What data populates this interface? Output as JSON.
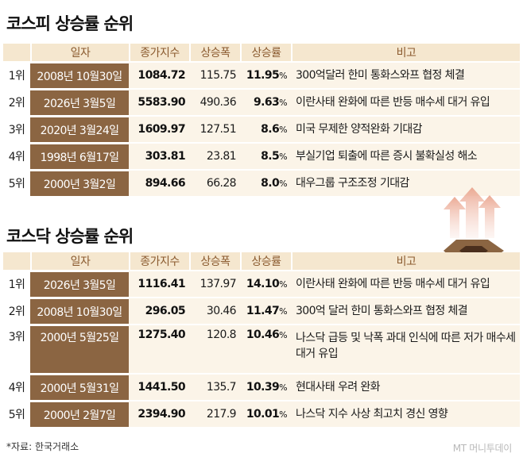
{
  "kospi": {
    "title": "코스피 상승률 순위",
    "headers": [
      "",
      "일자",
      "종가지수",
      "상승폭",
      "상승률",
      "비고"
    ],
    "rows": [
      {
        "rank": "1위",
        "date": "2008년 10월30일",
        "close": "1084.72",
        "change": "115.75",
        "rate": "11.95",
        "note": "300억달러 한미 통화스와프 협정 체결"
      },
      {
        "rank": "2위",
        "date": "2026년 3월5일",
        "close": "5583.90",
        "change": "490.36",
        "rate": "9.63",
        "note": "이란사태 완화에 따른 반등 매수세 대거 유입"
      },
      {
        "rank": "3위",
        "date": "2020년 3월24일",
        "close": "1609.97",
        "change": "127.51",
        "rate": "8.6",
        "note": "미국 무제한 양적완화 기대감"
      },
      {
        "rank": "4위",
        "date": "1998년 6월17일",
        "close": "303.81",
        "change": "23.81",
        "rate": "8.5",
        "note": "부실기업 퇴출에 따른 증시 불확실성 해소"
      },
      {
        "rank": "5위",
        "date": "2000년 3월2일",
        "close": "894.66",
        "change": "66.28",
        "rate": "8.0",
        "note": "대우그룹 구조조정 기대감"
      }
    ]
  },
  "kosdaq": {
    "title": "코스닥 상승률 순위",
    "headers": [
      "",
      "일자",
      "종가지수",
      "상승폭",
      "상승률",
      "비고"
    ],
    "rows": [
      {
        "rank": "1위",
        "date": "2026년 3월5일",
        "close": "1116.41",
        "change": "137.97",
        "rate": "14.10",
        "note": "이란사태 완화에 따른 반등 매수세 대거 유입"
      },
      {
        "rank": "2위",
        "date": "2008년 10월30일",
        "close": "296.05",
        "change": "30.46",
        "rate": "11.47",
        "note": "300억 달러 한미 통화스와프 협정 체결"
      },
      {
        "rank": "3위",
        "date": "2000년 5월25일",
        "close": "1275.40",
        "change": "120.8",
        "rate": "10.46",
        "note": "나스닥 급등 및 낙폭 과대 인식에 따른 저가 매수세 대거 유입"
      },
      {
        "rank": "4위",
        "date": "2000년 5월31일",
        "close": "1441.50",
        "change": "135.7",
        "rate": "10.39",
        "note": "현대사태 우려 완화"
      },
      {
        "rank": "5위",
        "date": "2000년 2월7일",
        "close": "2394.90",
        "change": "217.9",
        "rate": "10.01",
        "note": "나스닥 지수 사상 최고치 경신 영향"
      }
    ]
  },
  "percent_unit": "%",
  "source": "*자료: 한국거래소",
  "watermark": "MT 머니투데이",
  "decoration_icon": "rising-arrows-octagon-icon"
}
